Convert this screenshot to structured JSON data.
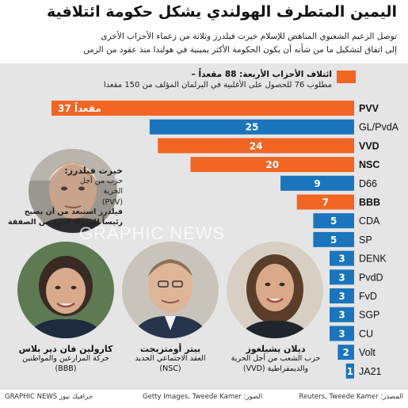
{
  "header": {
    "title": "اليمين المتطرف الهولندي يشكل حكومة ائتلافية",
    "subtitle_line1": "توصل الزعيم الشعبوي المناهض للإسلام خيرت فيلدرز وثلاثة من زعماء الأحزاب الأخرى",
    "subtitle_line2": "إلى اتفاق لتشكيل ما من شأنه أن يكون الحكومة الأكثر يمينية في هولندا منذ عقود من الزمن"
  },
  "legend": {
    "label": "ائتلاف الأحزاب الأربعة: 88 مقعداً –",
    "note": "مطلوب 76 للحصول على الأغلبية في البرلمان المؤلف من 150 مقعدا",
    "coalition_color": "#f26522",
    "other_color": "#1b75bc"
  },
  "chart_data": {
    "type": "bar",
    "orientation": "horizontal",
    "categories": [
      "PVV",
      "GL/PvdA",
      "VVD",
      "NSC",
      "D66",
      "BBB",
      "CDA",
      "SP",
      "DENK",
      "PvdD",
      "FvD",
      "SGP",
      "CU",
      "Volt",
      "JA21"
    ],
    "values": [
      37,
      25,
      24,
      20,
      9,
      7,
      5,
      5,
      3,
      3,
      3,
      3,
      3,
      2,
      1
    ],
    "value_labels": [
      "37 مقعداً",
      "25",
      "24",
      "20",
      "9",
      "7",
      "5",
      "5",
      "3",
      "3",
      "3",
      "3",
      "3",
      "2",
      "1"
    ],
    "coalition": [
      true,
      false,
      true,
      true,
      false,
      true,
      false,
      false,
      false,
      false,
      false,
      false,
      false,
      false,
      false
    ],
    "bold_categories": [
      true,
      false,
      true,
      true,
      false,
      true,
      false,
      false,
      false,
      false,
      false,
      false,
      false,
      false,
      false
    ],
    "xlim": [
      0,
      37
    ],
    "legend_position": "top-right",
    "grid": false
  },
  "people": {
    "wilders": {
      "name": "خيرت فيلدرز:",
      "party_line1": "حزب من أجل",
      "party_line2": "الحرية",
      "party_line3": "(PVV)",
      "note_line1": "فيلدرز استبعد من أن يصبح",
      "note_line2": "رئيساً للوزراء كجزء من الصفقة"
    },
    "vanderplas": {
      "name": "كارولين فان دير بلاس",
      "party_line1": "حركة المزارعين والمواطنين",
      "party_line2": "(BBB)"
    },
    "omtzigt": {
      "name": "بيتر أومتزيجت",
      "party_line1": "العقد الاجتماعي الجديد",
      "party_line2": "(NSC)"
    },
    "yesilgoz": {
      "name": "ديلان يشيلغوز",
      "party_line1": "حزب الشعب من أجل الحرية",
      "party_line2": "والديمقراطية (VVD)"
    }
  },
  "watermark": "GRAPHIC NEWS",
  "footer": {
    "brand": "GRAPHIC NEWS جرافيك نيوز",
    "photos": "الصور: Getty Images, Tweede Kamer",
    "source": "المصدر: Reuters, Tweede Kamer"
  }
}
